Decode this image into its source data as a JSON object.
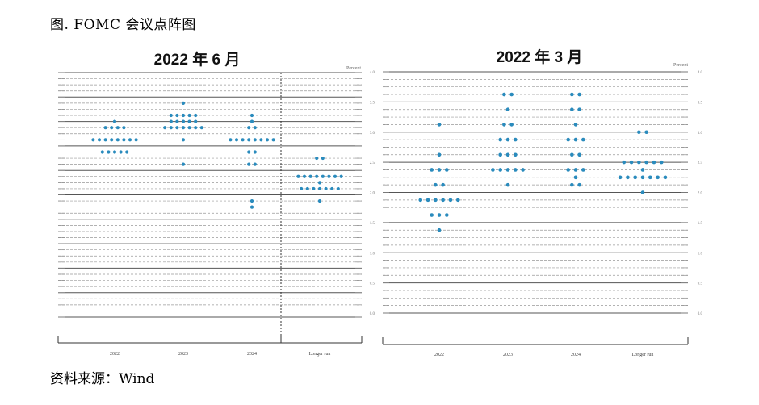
{
  "figure_title": "图. FOMC 会议点阵图",
  "source": "资料来源：Wind",
  "chart_data": [
    {
      "type": "scatter",
      "title": "2022 年 6 月",
      "ylabel": "Percent",
      "categories": [
        "2022",
        "2023",
        "2024",
        "Longer run"
      ],
      "ylim": [
        0,
        5
      ],
      "dot_color": "#2a8bbd",
      "points": [
        {
          "x": "2022",
          "y": 4.0,
          "count": 1
        },
        {
          "x": "2022",
          "y": 3.875,
          "count": 4
        },
        {
          "x": "2022",
          "y": 3.625,
          "count": 8
        },
        {
          "x": "2022",
          "y": 3.375,
          "count": 5
        },
        {
          "x": "2023",
          "y": 4.375,
          "count": 1
        },
        {
          "x": "2023",
          "y": 4.125,
          "count": 5
        },
        {
          "x": "2023",
          "y": 4.0,
          "count": 5
        },
        {
          "x": "2023",
          "y": 3.875,
          "count": 7
        },
        {
          "x": "2023",
          "y": 3.625,
          "count": 1
        },
        {
          "x": "2023",
          "y": 3.125,
          "count": 1
        },
        {
          "x": "2024",
          "y": 4.125,
          "count": 1
        },
        {
          "x": "2024",
          "y": 4.0,
          "count": 1
        },
        {
          "x": "2024",
          "y": 3.875,
          "count": 2
        },
        {
          "x": "2024",
          "y": 3.625,
          "count": 8
        },
        {
          "x": "2024",
          "y": 3.375,
          "count": 2
        },
        {
          "x": "2024",
          "y": 3.125,
          "count": 2
        },
        {
          "x": "2024",
          "y": 2.375,
          "count": 1
        },
        {
          "x": "2024",
          "y": 2.25,
          "count": 1
        },
        {
          "x": "Longer run",
          "y": 3.25,
          "count": 2
        },
        {
          "x": "Longer run",
          "y": 2.875,
          "count": 8
        },
        {
          "x": "Longer run",
          "y": 2.75,
          "count": 1
        },
        {
          "x": "Longer run",
          "y": 2.625,
          "count": 7
        },
        {
          "x": "Longer run",
          "y": 2.375,
          "count": 1
        }
      ]
    },
    {
      "type": "scatter",
      "title": "2022 年 3 月",
      "ylabel": "Percent",
      "categories": [
        "2022",
        "2023",
        "2024",
        "Longer run"
      ],
      "ylim": [
        0,
        4
      ],
      "yticks": [
        "0.0",
        "0.5",
        "1.0",
        "1.5",
        "2.0",
        "2.5",
        "3.0",
        "3.5",
        "4.0"
      ],
      "dot_color": "#2a8bbd",
      "points": [
        {
          "x": "2022",
          "y": 3.125,
          "count": 1
        },
        {
          "x": "2022",
          "y": 2.625,
          "count": 1
        },
        {
          "x": "2022",
          "y": 2.375,
          "count": 3
        },
        {
          "x": "2022",
          "y": 2.125,
          "count": 2
        },
        {
          "x": "2022",
          "y": 1.875,
          "count": 6
        },
        {
          "x": "2022",
          "y": 1.625,
          "count": 3
        },
        {
          "x": "2022",
          "y": 1.375,
          "count": 1
        },
        {
          "x": "2023",
          "y": 3.625,
          "count": 2
        },
        {
          "x": "2023",
          "y": 3.375,
          "count": 1
        },
        {
          "x": "2023",
          "y": 3.125,
          "count": 2
        },
        {
          "x": "2023",
          "y": 2.875,
          "count": 3
        },
        {
          "x": "2023",
          "y": 2.625,
          "count": 3
        },
        {
          "x": "2023",
          "y": 2.375,
          "count": 5
        },
        {
          "x": "2023",
          "y": 2.125,
          "count": 1
        },
        {
          "x": "2024",
          "y": 3.625,
          "count": 2
        },
        {
          "x": "2024",
          "y": 3.375,
          "count": 2
        },
        {
          "x": "2024",
          "y": 3.125,
          "count": 1
        },
        {
          "x": "2024",
          "y": 2.875,
          "count": 3
        },
        {
          "x": "2024",
          "y": 2.625,
          "count": 2
        },
        {
          "x": "2024",
          "y": 2.375,
          "count": 3
        },
        {
          "x": "2024",
          "y": 2.25,
          "count": 1
        },
        {
          "x": "2024",
          "y": 2.125,
          "count": 2
        },
        {
          "x": "Longer run",
          "y": 3.0,
          "count": 2
        },
        {
          "x": "Longer run",
          "y": 2.5,
          "count": 6
        },
        {
          "x": "Longer run",
          "y": 2.375,
          "count": 1
        },
        {
          "x": "Longer run",
          "y": 2.25,
          "count": 7
        },
        {
          "x": "Longer run",
          "y": 2.0,
          "count": 1
        }
      ]
    }
  ]
}
